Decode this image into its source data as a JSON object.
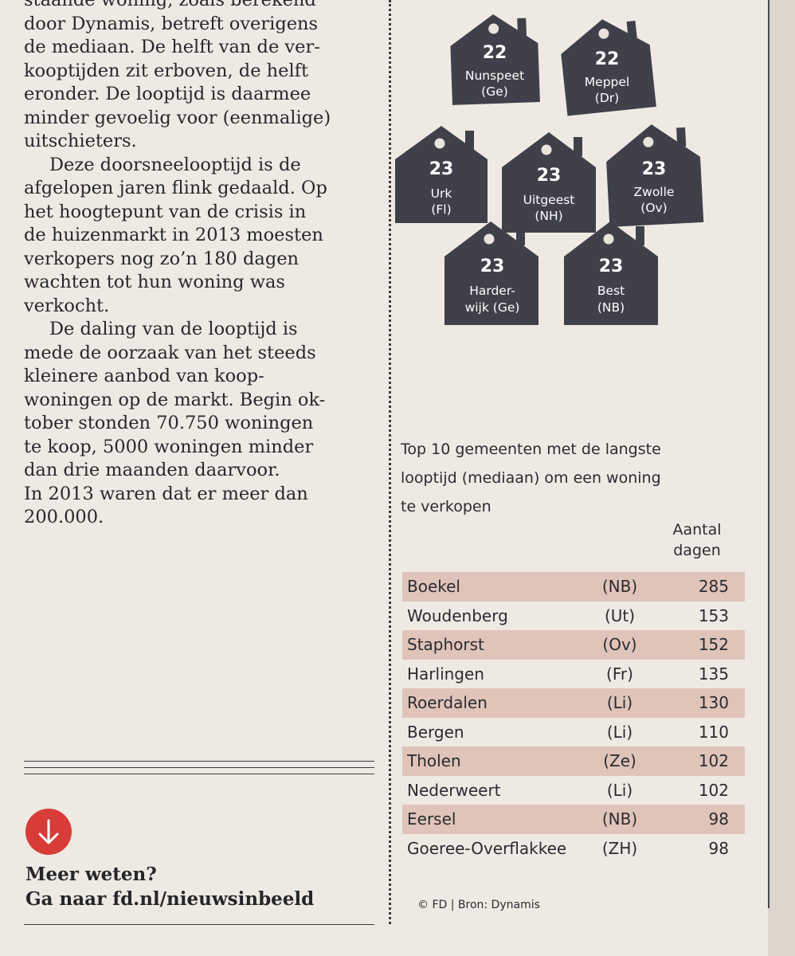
{
  "article": {
    "paragraphs": [
      {
        "indent": false,
        "lines": [
          "staande woning, zoals berekend",
          "door Dynamis, betreft overigens",
          "de mediaan. De helft van de ver-",
          "kooptijden zit erboven, de helft",
          "eronder. De looptijd is daarmee",
          "minder gevoelig voor (eenmalige)",
          "uitschieters."
        ]
      },
      {
        "indent": true,
        "lines": [
          "Deze doorsneelooptijd is de",
          "afgelopen jaren flink gedaald. Op",
          "het hoogtepunt van de crisis in",
          "de huizenmarkt in 2013 moesten",
          "verkopers nog zo’n 180 dagen",
          "wachten tot hun woning was",
          "verkocht."
        ]
      },
      {
        "indent": true,
        "lines": [
          "De daling van de looptijd is",
          "mede de oorzaak van het steeds",
          "kleinere aanbod van koop-",
          "woningen op de markt. Begin ok-",
          "tober stonden 70.750 woningen",
          "te koop, 5000 woningen minder",
          "dan drie maanden daarvoor.",
          "In 2013 waren dat er meer dan",
          "200.000."
        ]
      }
    ]
  },
  "more_info": {
    "line1": "Meer weten?",
    "line2": "Ga naar fd.nl/nieuwsinbeeld"
  },
  "houses": [
    {
      "days": "22",
      "name1": "Nunspeet",
      "name2": "(Ge)"
    },
    {
      "days": "22",
      "name1": "Meppel",
      "name2": "(Dr)"
    },
    {
      "days": "23",
      "name1": "Urk",
      "name2": "(Fl)"
    },
    {
      "days": "23",
      "name1": "Uitgeest",
      "name2": "(NH)"
    },
    {
      "days": "23",
      "name1": "Zwolle",
      "name2": "(Ov)"
    },
    {
      "days": "23",
      "name1": "Harder-",
      "name2": "wijk (Ge)"
    },
    {
      "days": "23",
      "name1": "Best",
      "name2": "(NB)"
    }
  ],
  "table": {
    "caption_lines": [
      "Top 10 gemeenten met de langste",
      "looptijd (mediaan) om een woning",
      "te verkopen"
    ],
    "column_header": {
      "line1": "Aantal",
      "line2": "dagen"
    },
    "rows": [
      {
        "name": "Boekel",
        "province": "(NB)",
        "days": "285"
      },
      {
        "name": "Woudenberg",
        "province": "(Ut)",
        "days": "153"
      },
      {
        "name": "Staphorst",
        "province": "(Ov)",
        "days": "152"
      },
      {
        "name": "Harlingen",
        "province": "(Fr)",
        "days": "135"
      },
      {
        "name": "Roerdalen",
        "province": "(Li)",
        "days": "130"
      },
      {
        "name": "Bergen",
        "province": "(Li)",
        "days": "110"
      },
      {
        "name": "Tholen",
        "province": "(Ze)",
        "days": "102"
      },
      {
        "name": "Nederweert",
        "province": "(Li)",
        "days": "102"
      },
      {
        "name": "Eersel",
        "province": "(NB)",
        "days": "98"
      },
      {
        "name": "Goeree-Overflakkee",
        "province": "(ZH)",
        "days": "98"
      }
    ]
  },
  "credit": "© FD | Bron: Dynamis",
  "colors": {
    "house": "#3f4049",
    "row_shade": "#e0c4ba",
    "arrow_badge": "#d83c38",
    "paper": "#eeeae3"
  },
  "icons": {
    "arrow": "arrow-down-icon",
    "house": "house-tag-icon"
  }
}
